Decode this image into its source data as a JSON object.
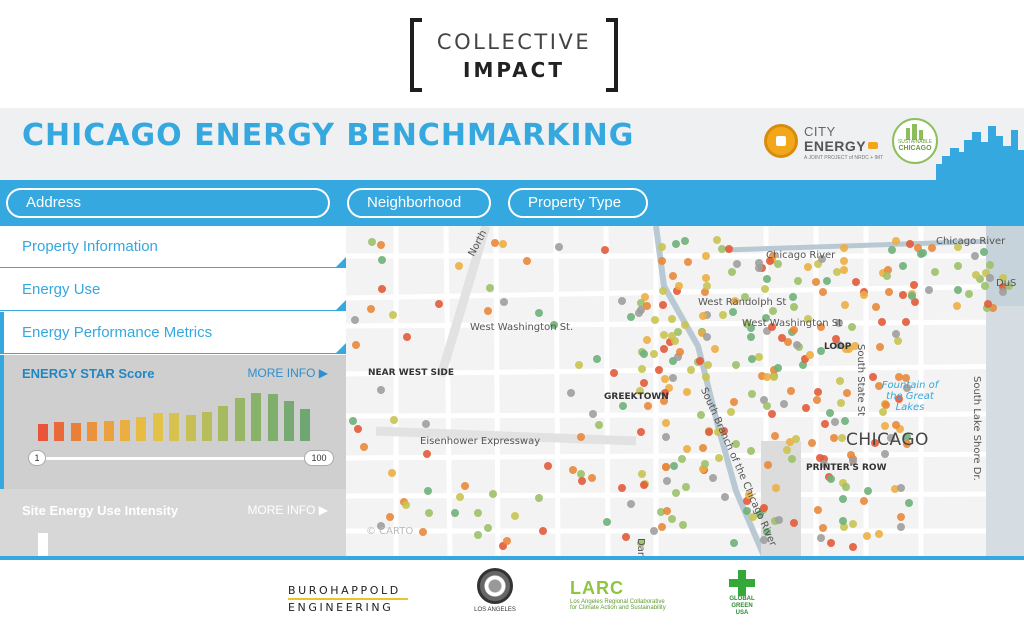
{
  "logo": {
    "line1": "COLLECTIVE",
    "line2": "IMPACT"
  },
  "header": {
    "title": "CHICAGO ENERGY BENCHMARKING",
    "city_energy": {
      "line1": "CITY",
      "line2": "ENERGY",
      "line3": "A JOINT PROJECT of NRDC + IMT"
    },
    "sustainable": {
      "line1": "SUSTAINABLE",
      "line2": "CHICAGO"
    }
  },
  "nav": {
    "address_placeholder": "Address",
    "neighborhood": "Neighborhood",
    "property_type": "Property Type"
  },
  "sidebar": {
    "sections": [
      "Property Information",
      "Energy Use",
      "Energy Performance Metrics"
    ],
    "energy_star": {
      "title": "ENERGY STAR Score",
      "more_info": "MORE INFO ▶",
      "min": "1",
      "max": "100",
      "histogram": [
        {
          "value": 0.3,
          "color": "#e8553a"
        },
        {
          "value": 0.34,
          "color": "#e86a3a"
        },
        {
          "value": 0.32,
          "color": "#e9803a"
        },
        {
          "value": 0.34,
          "color": "#ea933c"
        },
        {
          "value": 0.36,
          "color": "#eba23e"
        },
        {
          "value": 0.38,
          "color": "#eaaf40"
        },
        {
          "value": 0.42,
          "color": "#e8bb43"
        },
        {
          "value": 0.5,
          "color": "#e3c248"
        },
        {
          "value": 0.5,
          "color": "#d6c24e"
        },
        {
          "value": 0.46,
          "color": "#c6c054"
        },
        {
          "value": 0.52,
          "color": "#b6bd5a"
        },
        {
          "value": 0.62,
          "color": "#a6ba60"
        },
        {
          "value": 0.76,
          "color": "#96b666"
        },
        {
          "value": 0.86,
          "color": "#88b26a"
        },
        {
          "value": 0.84,
          "color": "#7fae6d"
        },
        {
          "value": 0.72,
          "color": "#76aa70"
        },
        {
          "value": 0.58,
          "color": "#6fa672"
        }
      ]
    },
    "site_eui": {
      "title": "Site Energy Use Intensity",
      "more_info": "MORE INFO ▶"
    }
  },
  "map": {
    "labels": {
      "north": "North",
      "chicago_river_1": "Chicago River",
      "chicago_river_2": "Chicago River",
      "west_randolph": "West Randolph St",
      "west_washington_1": "West Washington St.",
      "west_washington_2": "West Washington St",
      "near_west_side": "NEAR WEST SIDE",
      "greektown": "GREEKTOWN",
      "loop": "LOOP",
      "south_branch": "South Branch of the Chicago River",
      "south_state": "South State St",
      "fountain": "Fountain of the Great Lakes",
      "south_lake_shore": "South Lake Shore Dr.",
      "eisenhower": "Eisenhower Expressway",
      "chicago": "CHICAGO",
      "printers_row": "PRINTER'S ROW",
      "carto": "© CARTO",
      "dan": "Dan",
      "dus": "DuS"
    },
    "point_colors": [
      "#e35b3a",
      "#e8883b",
      "#ecae43",
      "#c8c452",
      "#9cc169",
      "#6fb07a",
      "#9e9e9e"
    ]
  },
  "footer": {
    "buro_line1": "BUROHAPPOLD",
    "buro_line2": "ENGINEERING",
    "usgbc": "LOS ANGELES",
    "larc_title": "LARC",
    "larc_line2": "Los Angeles Regional Collaborative",
    "larc_line3": "for Climate Action and Sustainability",
    "gg_line1": "GLOBAL",
    "gg_line2": "GREEN",
    "gg_line3": "USA"
  },
  "colors": {
    "accent": "#35a8e0",
    "panel": "#cfcfcf"
  }
}
